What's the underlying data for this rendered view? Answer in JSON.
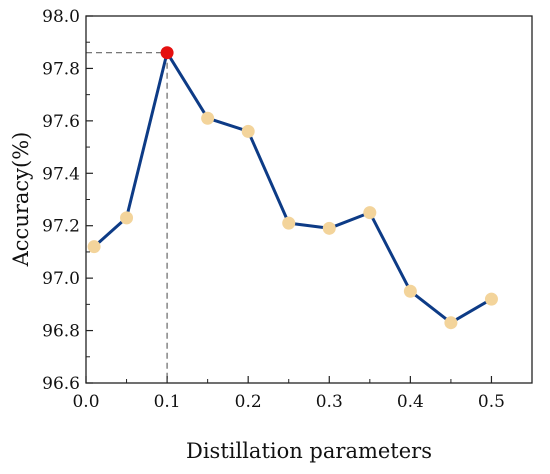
{
  "chart_data": {
    "type": "line",
    "title": "",
    "xlabel": "Distillation parameters",
    "ylabel": "Accuracy(%)",
    "xlim": [
      0.0,
      0.55
    ],
    "ylim": [
      96.6,
      98.0
    ],
    "xticks": [
      "0.0",
      "0.1",
      "0.2",
      "0.3",
      "0.4",
      "0.5"
    ],
    "yticks": [
      "96.6",
      "96.8",
      "97.0",
      "97.2",
      "97.4",
      "97.6",
      "97.8",
      "98.0"
    ],
    "series": [
      {
        "x": [
          0.01,
          0.05,
          0.1,
          0.15,
          0.2,
          0.25,
          0.3,
          0.35,
          0.4,
          0.45,
          0.5
        ],
        "y": [
          97.12,
          97.23,
          97.86,
          97.61,
          97.56,
          97.21,
          97.19,
          97.25,
          96.95,
          96.83,
          96.92
        ]
      }
    ],
    "highlight": {
      "x": 0.1,
      "y": 97.86
    },
    "grid": false,
    "colors": {
      "line": "#0d3b86",
      "marker": "#f3d49b",
      "highlight": "#e51010",
      "guide": "#666666"
    }
  }
}
